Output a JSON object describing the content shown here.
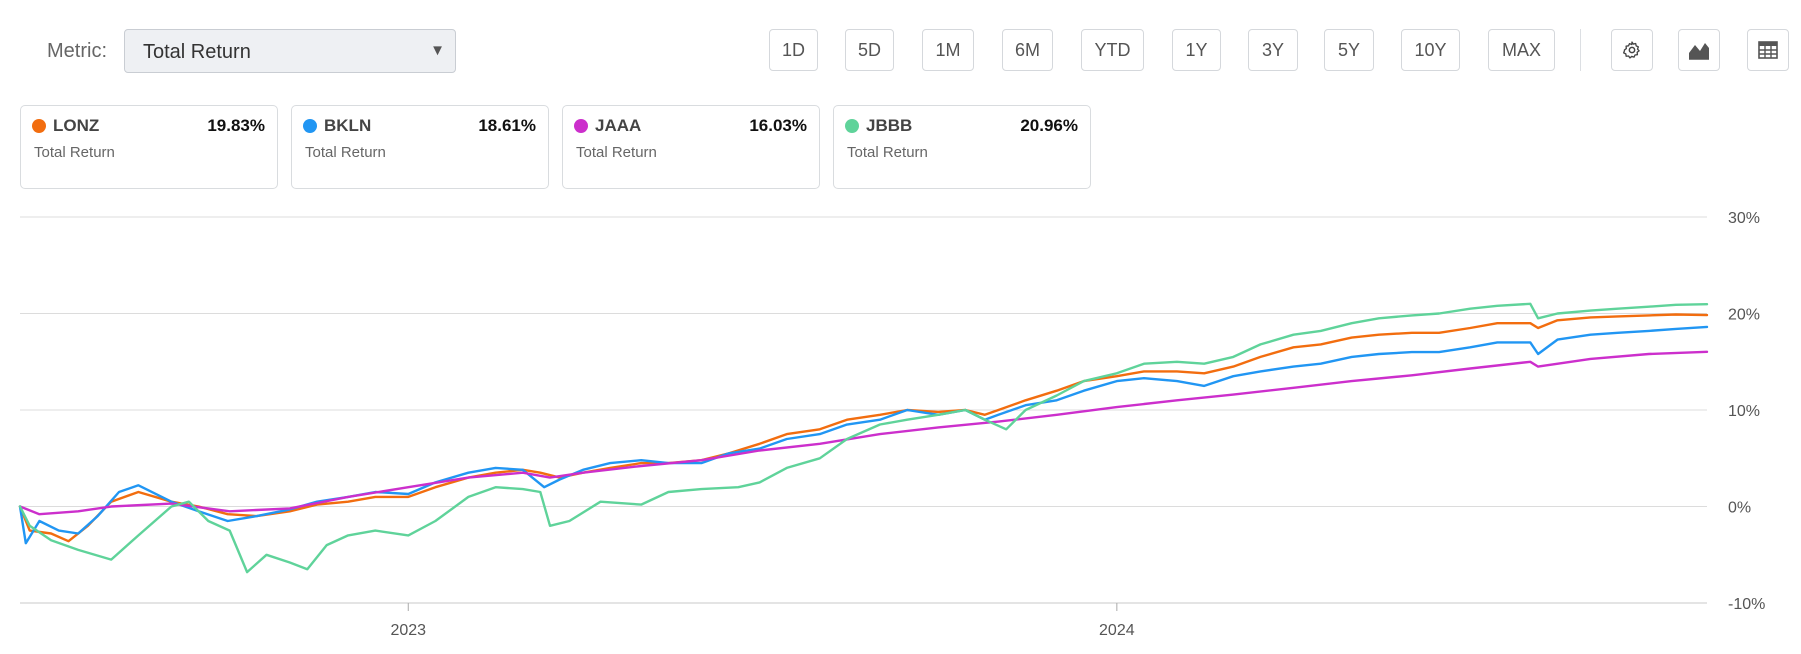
{
  "toolbar": {
    "metric_label": "Metric:",
    "metric_value": "Total Return",
    "ranges": [
      "1D",
      "5D",
      "1M",
      "6M",
      "YTD",
      "1Y",
      "3Y",
      "5Y",
      "10Y",
      "MAX"
    ],
    "icons": [
      "gear-icon",
      "area-chart-icon",
      "table-icon"
    ]
  },
  "legend": [
    {
      "ticker": "LONZ",
      "value": "19.83%",
      "subtitle": "Total Return",
      "color": "#f26d0f"
    },
    {
      "ticker": "BKLN",
      "value": "18.61%",
      "subtitle": "Total Return",
      "color": "#2196f3"
    },
    {
      "ticker": "JAAA",
      "value": "16.03%",
      "subtitle": "Total Return",
      "color": "#cc2fcc"
    },
    {
      "ticker": "JBBB",
      "value": "20.96%",
      "subtitle": "Total Return",
      "color": "#5fd39a"
    }
  ],
  "chart_data": {
    "type": "line",
    "title": "",
    "xlabel": "",
    "ylabel": "",
    "ylim": [
      -10,
      30
    ],
    "yticks": [
      30,
      20,
      10,
      0,
      -10
    ],
    "ytick_labels": [
      "30%",
      "20%",
      "10%",
      "0%",
      "-10%"
    ],
    "xlim": [
      "2022-06-15",
      "2024-10-31"
    ],
    "xticks": [
      {
        "date": "2023-01-01",
        "label": "2023"
      },
      {
        "date": "2024-01-01",
        "label": "2024"
      }
    ],
    "grid": true,
    "series": [
      {
        "name": "LONZ",
        "color": "#f26d0f",
        "points": [
          [
            "2022-06-15",
            0
          ],
          [
            "2022-06-20",
            -2.5
          ],
          [
            "2022-07-01",
            -2.8
          ],
          [
            "2022-07-10",
            -3.6
          ],
          [
            "2022-07-20",
            -2.0
          ],
          [
            "2022-08-01",
            0.5
          ],
          [
            "2022-08-15",
            1.5
          ],
          [
            "2022-09-01",
            0.5
          ],
          [
            "2022-09-15",
            0
          ],
          [
            "2022-09-30",
            -0.8
          ],
          [
            "2022-10-15",
            -1.0
          ],
          [
            "2022-11-01",
            -0.5
          ],
          [
            "2022-11-15",
            0.2
          ],
          [
            "2022-12-01",
            0.5
          ],
          [
            "2022-12-15",
            1.0
          ],
          [
            "2023-01-01",
            1.0
          ],
          [
            "2023-01-15",
            2.0
          ],
          [
            "2023-02-01",
            3.0
          ],
          [
            "2023-02-15",
            3.5
          ],
          [
            "2023-03-01",
            3.8
          ],
          [
            "2023-03-10",
            3.5
          ],
          [
            "2023-03-20",
            3.0
          ],
          [
            "2023-04-01",
            3.5
          ],
          [
            "2023-04-15",
            4.0
          ],
          [
            "2023-05-01",
            4.5
          ],
          [
            "2023-05-15",
            4.5
          ],
          [
            "2023-06-01",
            4.8
          ],
          [
            "2023-06-15",
            5.5
          ],
          [
            "2023-07-01",
            6.5
          ],
          [
            "2023-07-15",
            7.5
          ],
          [
            "2023-08-01",
            8.0
          ],
          [
            "2023-08-15",
            9.0
          ],
          [
            "2023-09-01",
            9.5
          ],
          [
            "2023-09-15",
            10.0
          ],
          [
            "2023-10-01",
            9.8
          ],
          [
            "2023-10-15",
            10.0
          ],
          [
            "2023-10-25",
            9.5
          ],
          [
            "2023-11-01",
            10.0
          ],
          [
            "2023-11-15",
            11.0
          ],
          [
            "2023-12-01",
            12.0
          ],
          [
            "2023-12-15",
            13.0
          ],
          [
            "2024-01-01",
            13.5
          ],
          [
            "2024-01-15",
            14.0
          ],
          [
            "2024-02-01",
            14.0
          ],
          [
            "2024-02-15",
            13.8
          ],
          [
            "2024-03-01",
            14.5
          ],
          [
            "2024-03-15",
            15.5
          ],
          [
            "2024-04-01",
            16.5
          ],
          [
            "2024-04-15",
            16.8
          ],
          [
            "2024-05-01",
            17.5
          ],
          [
            "2024-05-15",
            17.8
          ],
          [
            "2024-06-01",
            18.0
          ],
          [
            "2024-06-15",
            18.0
          ],
          [
            "2024-07-01",
            18.5
          ],
          [
            "2024-07-15",
            19.0
          ],
          [
            "2024-08-01",
            19.0
          ],
          [
            "2024-08-05",
            18.5
          ],
          [
            "2024-08-15",
            19.3
          ],
          [
            "2024-09-01",
            19.6
          ],
          [
            "2024-09-15",
            19.7
          ],
          [
            "2024-10-01",
            19.8
          ],
          [
            "2024-10-15",
            19.9
          ],
          [
            "2024-10-31",
            19.83
          ]
        ]
      },
      {
        "name": "BKLN",
        "color": "#2196f3",
        "points": [
          [
            "2022-06-15",
            0
          ],
          [
            "2022-06-18",
            -3.8
          ],
          [
            "2022-06-25",
            -1.5
          ],
          [
            "2022-07-05",
            -2.5
          ],
          [
            "2022-07-15",
            -2.8
          ],
          [
            "2022-07-25",
            -1.0
          ],
          [
            "2022-08-05",
            1.5
          ],
          [
            "2022-08-15",
            2.2
          ],
          [
            "2022-09-01",
            0.5
          ],
          [
            "2022-09-15",
            -0.5
          ],
          [
            "2022-09-30",
            -1.5
          ],
          [
            "2022-10-15",
            -1.0
          ],
          [
            "2022-11-01",
            -0.3
          ],
          [
            "2022-11-15",
            0.5
          ],
          [
            "2022-12-01",
            1.0
          ],
          [
            "2022-12-15",
            1.5
          ],
          [
            "2023-01-01",
            1.3
          ],
          [
            "2023-01-15",
            2.5
          ],
          [
            "2023-02-01",
            3.5
          ],
          [
            "2023-02-15",
            4.0
          ],
          [
            "2023-03-01",
            3.8
          ],
          [
            "2023-03-12",
            2.0
          ],
          [
            "2023-03-20",
            2.8
          ],
          [
            "2023-04-01",
            3.8
          ],
          [
            "2023-04-15",
            4.5
          ],
          [
            "2023-05-01",
            4.8
          ],
          [
            "2023-05-15",
            4.5
          ],
          [
            "2023-06-01",
            4.5
          ],
          [
            "2023-06-15",
            5.5
          ],
          [
            "2023-07-01",
            6.0
          ],
          [
            "2023-07-15",
            7.0
          ],
          [
            "2023-08-01",
            7.5
          ],
          [
            "2023-08-15",
            8.5
          ],
          [
            "2023-09-01",
            9.0
          ],
          [
            "2023-09-15",
            10.0
          ],
          [
            "2023-10-01",
            9.5
          ],
          [
            "2023-10-15",
            10.0
          ],
          [
            "2023-10-25",
            9.0
          ],
          [
            "2023-11-01",
            9.5
          ],
          [
            "2023-11-15",
            10.5
          ],
          [
            "2023-12-01",
            11.0
          ],
          [
            "2023-12-15",
            12.0
          ],
          [
            "2024-01-01",
            13.0
          ],
          [
            "2024-01-15",
            13.3
          ],
          [
            "2024-02-01",
            13.0
          ],
          [
            "2024-02-15",
            12.5
          ],
          [
            "2024-03-01",
            13.5
          ],
          [
            "2024-03-15",
            14.0
          ],
          [
            "2024-04-01",
            14.5
          ],
          [
            "2024-04-15",
            14.8
          ],
          [
            "2024-05-01",
            15.5
          ],
          [
            "2024-05-15",
            15.8
          ],
          [
            "2024-06-01",
            16.0
          ],
          [
            "2024-06-15",
            16.0
          ],
          [
            "2024-07-01",
            16.5
          ],
          [
            "2024-07-15",
            17.0
          ],
          [
            "2024-08-01",
            17.0
          ],
          [
            "2024-08-05",
            15.8
          ],
          [
            "2024-08-15",
            17.3
          ],
          [
            "2024-09-01",
            17.8
          ],
          [
            "2024-09-15",
            18.0
          ],
          [
            "2024-10-01",
            18.2
          ],
          [
            "2024-10-15",
            18.4
          ],
          [
            "2024-10-31",
            18.61
          ]
        ]
      },
      {
        "name": "JAAA",
        "color": "#cc2fcc",
        "points": [
          [
            "2022-06-15",
            0
          ],
          [
            "2022-06-25",
            -0.8
          ],
          [
            "2022-07-15",
            -0.5
          ],
          [
            "2022-08-01",
            0
          ],
          [
            "2022-09-01",
            0.3
          ],
          [
            "2022-10-01",
            -0.5
          ],
          [
            "2022-11-01",
            -0.2
          ],
          [
            "2022-12-01",
            1.0
          ],
          [
            "2023-01-01",
            2.0
          ],
          [
            "2023-02-01",
            3.0
          ],
          [
            "2023-03-01",
            3.5
          ],
          [
            "2023-03-15",
            3.0
          ],
          [
            "2023-04-01",
            3.5
          ],
          [
            "2023-05-01",
            4.2
          ],
          [
            "2023-06-01",
            4.8
          ],
          [
            "2023-07-01",
            5.8
          ],
          [
            "2023-08-01",
            6.5
          ],
          [
            "2023-09-01",
            7.5
          ],
          [
            "2023-10-01",
            8.2
          ],
          [
            "2023-11-01",
            8.8
          ],
          [
            "2023-12-01",
            9.5
          ],
          [
            "2024-01-01",
            10.3
          ],
          [
            "2024-02-01",
            11.0
          ],
          [
            "2024-03-01",
            11.6
          ],
          [
            "2024-04-01",
            12.3
          ],
          [
            "2024-05-01",
            13.0
          ],
          [
            "2024-06-01",
            13.6
          ],
          [
            "2024-07-01",
            14.3
          ],
          [
            "2024-08-01",
            15.0
          ],
          [
            "2024-08-05",
            14.5
          ],
          [
            "2024-09-01",
            15.3
          ],
          [
            "2024-10-01",
            15.8
          ],
          [
            "2024-10-31",
            16.03
          ]
        ]
      },
      {
        "name": "JBBB",
        "color": "#5fd39a",
        "points": [
          [
            "2022-06-15",
            0
          ],
          [
            "2022-06-20",
            -2.0
          ],
          [
            "2022-07-01",
            -3.5
          ],
          [
            "2022-07-15",
            -4.5
          ],
          [
            "2022-08-01",
            -5.5
          ],
          [
            "2022-08-15",
            -3.0
          ],
          [
            "2022-09-01",
            0
          ],
          [
            "2022-09-10",
            0.5
          ],
          [
            "2022-09-20",
            -1.5
          ],
          [
            "2022-10-01",
            -2.5
          ],
          [
            "2022-10-10",
            -6.8
          ],
          [
            "2022-10-20",
            -5.0
          ],
          [
            "2022-11-01",
            -5.8
          ],
          [
            "2022-11-10",
            -6.5
          ],
          [
            "2022-11-20",
            -4.0
          ],
          [
            "2022-12-01",
            -3.0
          ],
          [
            "2022-12-15",
            -2.5
          ],
          [
            "2023-01-01",
            -3.0
          ],
          [
            "2023-01-15",
            -1.5
          ],
          [
            "2023-02-01",
            1.0
          ],
          [
            "2023-02-15",
            2.0
          ],
          [
            "2023-03-01",
            1.8
          ],
          [
            "2023-03-10",
            1.5
          ],
          [
            "2023-03-15",
            -2.0
          ],
          [
            "2023-03-25",
            -1.5
          ],
          [
            "2023-04-10",
            0.5
          ],
          [
            "2023-05-01",
            0.2
          ],
          [
            "2023-05-15",
            1.5
          ],
          [
            "2023-06-01",
            1.8
          ],
          [
            "2023-06-20",
            2.0
          ],
          [
            "2023-07-01",
            2.5
          ],
          [
            "2023-07-15",
            4.0
          ],
          [
            "2023-08-01",
            5.0
          ],
          [
            "2023-08-15",
            7.0
          ],
          [
            "2023-09-01",
            8.5
          ],
          [
            "2023-09-15",
            9.0
          ],
          [
            "2023-10-01",
            9.5
          ],
          [
            "2023-10-15",
            10.0
          ],
          [
            "2023-10-25",
            9.0
          ],
          [
            "2023-11-05",
            8.0
          ],
          [
            "2023-11-15",
            10.0
          ],
          [
            "2023-12-01",
            11.5
          ],
          [
            "2023-12-15",
            13.0
          ],
          [
            "2024-01-01",
            13.8
          ],
          [
            "2024-01-15",
            14.8
          ],
          [
            "2024-02-01",
            15.0
          ],
          [
            "2024-02-15",
            14.8
          ],
          [
            "2024-03-01",
            15.5
          ],
          [
            "2024-03-15",
            16.8
          ],
          [
            "2024-04-01",
            17.8
          ],
          [
            "2024-04-15",
            18.2
          ],
          [
            "2024-05-01",
            19.0
          ],
          [
            "2024-05-15",
            19.5
          ],
          [
            "2024-06-01",
            19.8
          ],
          [
            "2024-06-15",
            20.0
          ],
          [
            "2024-07-01",
            20.5
          ],
          [
            "2024-07-15",
            20.8
          ],
          [
            "2024-08-01",
            21.0
          ],
          [
            "2024-08-05",
            19.5
          ],
          [
            "2024-08-15",
            20.0
          ],
          [
            "2024-09-01",
            20.3
          ],
          [
            "2024-09-15",
            20.5
          ],
          [
            "2024-10-01",
            20.7
          ],
          [
            "2024-10-15",
            20.9
          ],
          [
            "2024-10-31",
            20.96
          ]
        ]
      }
    ]
  }
}
